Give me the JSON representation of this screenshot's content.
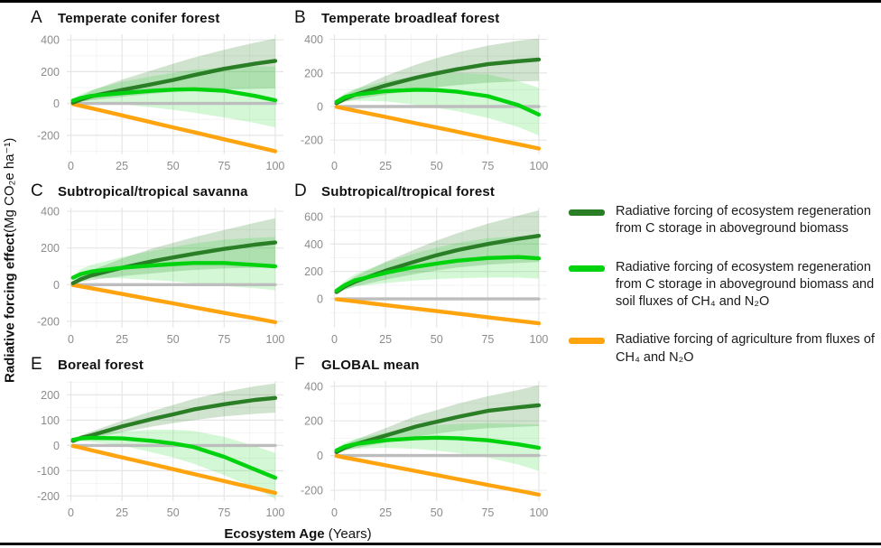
{
  "figure": {
    "y_axis_title_bold": "Radiative forcing effect",
    "y_axis_title_unit": " (Mg CO₂e ha⁻¹)",
    "x_axis_title_bold": "Ecosystem Age",
    "x_axis_title_unit": " (Years)"
  },
  "colors": {
    "dark_green": "#2a7e26",
    "bright_green": "#00d30d",
    "orange": "#ffa40e",
    "gray": "#bdbdbd",
    "dark_green_ribbon": "rgba(42,126,38,0.22)",
    "bright_green_ribbon": "rgba(0,211,13,0.17)",
    "grid_major": "#e6e6e6",
    "grid_minor": "#f3f3f3",
    "tick_label": "#8c8c8c"
  },
  "legend": {
    "items": [
      {
        "color": "#2a7e26",
        "label": "Radiative forcing of ecosystem regeneration from C storage in aboveground biomass"
      },
      {
        "color": "#00d30d",
        "label": "Radiative forcing of ecosystem regeneration from C storage in aboveground biomass and soil fluxes of CH₄ and N₂O"
      },
      {
        "color": "#ffa40e",
        "label": "Radiative forcing of agriculture from fluxes of CH₄ and N₂O"
      }
    ]
  },
  "chart_data": [
    {
      "type": "line",
      "letter": "A",
      "title": "Temperate conifer forest",
      "x": [
        1,
        5,
        10,
        25,
        40,
        50,
        60,
        75,
        90,
        100
      ],
      "xlim": [
        -2,
        104
      ],
      "ylim": [
        -320,
        435
      ],
      "xticks": [
        0,
        25,
        50,
        75,
        100
      ],
      "yticks": [
        -200,
        0,
        200,
        400
      ],
      "series": [
        {
          "name": "zero_reference",
          "color_key": "gray",
          "values": [
            0,
            0,
            0,
            0,
            0,
            0,
            0,
            0,
            0,
            0
          ]
        },
        {
          "name": "agriculture_ch4_n2o",
          "color_key": "orange",
          "values": [
            -3,
            -15,
            -30,
            -75,
            -120,
            -150,
            -180,
            -225,
            -270,
            -300
          ]
        },
        {
          "name": "regeneration_agb",
          "color_key": "dark_green",
          "ribbon_key": "dark_green_ribbon",
          "values": [
            5,
            25,
            45,
            85,
            122,
            148,
            178,
            218,
            250,
            268
          ],
          "ribbon_lo": [
            0,
            10,
            20,
            42,
            62,
            72,
            82,
            88,
            92,
            95
          ],
          "ribbon_hi": [
            12,
            45,
            80,
            150,
            210,
            250,
            288,
            338,
            382,
            408
          ]
        },
        {
          "name": "regeneration_agb_soil",
          "color_key": "bright_green",
          "ribbon_key": "bright_green_ribbon",
          "values": [
            18,
            35,
            48,
            65,
            80,
            87,
            90,
            80,
            48,
            20
          ],
          "ribbon_lo": [
            8,
            14,
            10,
            -5,
            -25,
            -40,
            -58,
            -88,
            -122,
            -150
          ],
          "ribbon_hi": [
            30,
            60,
            85,
            135,
            172,
            192,
            212,
            228,
            234,
            232
          ]
        }
      ]
    },
    {
      "type": "line",
      "letter": "B",
      "title": "Temperate broadleaf forest",
      "x": [
        1,
        5,
        10,
        25,
        40,
        50,
        60,
        75,
        90,
        100
      ],
      "xlim": [
        -2,
        104
      ],
      "ylim": [
        -285,
        430
      ],
      "xticks": [
        0,
        25,
        50,
        75,
        100
      ],
      "yticks": [
        -200,
        0,
        200,
        400
      ],
      "series": [
        {
          "name": "zero_reference",
          "color_key": "gray",
          "values": [
            0,
            0,
            0,
            0,
            0,
            0,
            0,
            0,
            0,
            0
          ]
        },
        {
          "name": "agriculture_ch4_n2o",
          "color_key": "orange",
          "values": [
            -2,
            -12,
            -25,
            -62,
            -100,
            -125,
            -150,
            -188,
            -225,
            -250
          ]
        },
        {
          "name": "regeneration_agb",
          "color_key": "dark_green",
          "ribbon_key": "dark_green_ribbon",
          "values": [
            20,
            45,
            70,
            125,
            172,
            198,
            222,
            252,
            270,
            280
          ],
          "ribbon_lo": [
            12,
            28,
            42,
            72,
            100,
            115,
            128,
            142,
            150,
            152
          ],
          "ribbon_hi": [
            28,
            68,
            100,
            182,
            250,
            288,
            322,
            362,
            392,
            405
          ]
        },
        {
          "name": "regeneration_agb_soil",
          "color_key": "bright_green",
          "ribbon_key": "bright_green_ribbon",
          "values": [
            28,
            55,
            70,
            92,
            100,
            98,
            88,
            62,
            8,
            -48
          ],
          "ribbon_lo": [
            16,
            30,
            35,
            30,
            10,
            -8,
            -28,
            -68,
            -122,
            -172
          ],
          "ribbon_hi": [
            40,
            80,
            105,
            150,
            182,
            192,
            198,
            192,
            152,
            112
          ]
        }
      ]
    },
    {
      "type": "line",
      "letter": "C",
      "title": "Subtropical/tropical savanna",
      "x": [
        1,
        5,
        10,
        25,
        40,
        50,
        60,
        75,
        90,
        100
      ],
      "xlim": [
        -2,
        104
      ],
      "ylim": [
        -235,
        420
      ],
      "xticks": [
        0,
        25,
        50,
        75,
        100
      ],
      "yticks": [
        -200,
        0,
        200,
        400
      ],
      "series": [
        {
          "name": "zero_reference",
          "color_key": "gray",
          "values": [
            0,
            0,
            0,
            0,
            0,
            0,
            0,
            0,
            0,
            0
          ]
        },
        {
          "name": "agriculture_ch4_n2o",
          "color_key": "orange",
          "values": [
            -2,
            -10,
            -20,
            -51,
            -82,
            -102,
            -123,
            -154,
            -184,
            -205
          ]
        },
        {
          "name": "regeneration_agb",
          "color_key": "dark_green",
          "ribbon_key": "dark_green_ribbon",
          "values": [
            8,
            30,
            50,
            92,
            128,
            148,
            168,
            195,
            218,
            230
          ],
          "ribbon_lo": [
            2,
            14,
            24,
            46,
            62,
            72,
            80,
            88,
            92,
            95
          ],
          "ribbon_hi": [
            14,
            48,
            78,
            142,
            198,
            228,
            258,
            298,
            338,
            362
          ]
        },
        {
          "name": "regeneration_agb_soil",
          "color_key": "bright_green",
          "ribbon_key": "bright_green_ribbon",
          "values": [
            38,
            58,
            72,
            92,
            105,
            112,
            118,
            118,
            108,
            100
          ],
          "ribbon_lo": [
            24,
            34,
            38,
            35,
            25,
            18,
            8,
            -8,
            -20,
            -30
          ],
          "ribbon_hi": [
            52,
            85,
            108,
            150,
            185,
            205,
            225,
            245,
            255,
            260
          ]
        }
      ]
    },
    {
      "type": "line",
      "letter": "D",
      "title": "Subtropical/tropical forest",
      "x": [
        1,
        5,
        10,
        25,
        40,
        50,
        60,
        75,
        90,
        100
      ],
      "xlim": [
        -2,
        104
      ],
      "ylim": [
        -210,
        665
      ],
      "xticks": [
        0,
        25,
        50,
        75,
        100
      ],
      "yticks": [
        0,
        200,
        400,
        600
      ],
      "series": [
        {
          "name": "zero_reference",
          "color_key": "gray",
          "values": [
            0,
            0,
            0,
            0,
            0,
            0,
            0,
            0,
            0,
            0
          ]
        },
        {
          "name": "agriculture_ch4_n2o",
          "color_key": "orange",
          "values": [
            -2,
            -9,
            -18,
            -45,
            -71,
            -89,
            -107,
            -134,
            -160,
            -178
          ]
        },
        {
          "name": "regeneration_agb",
          "color_key": "dark_green",
          "ribbon_key": "dark_green_ribbon",
          "values": [
            50,
            90,
            125,
            205,
            275,
            318,
            355,
            400,
            438,
            460
          ],
          "ribbon_lo": [
            40,
            65,
            90,
            140,
            182,
            208,
            228,
            250,
            262,
            268
          ],
          "ribbon_hi": [
            62,
            115,
            162,
            270,
            365,
            425,
            478,
            548,
            608,
            645
          ]
        },
        {
          "name": "regeneration_agb_soil",
          "color_key": "bright_green",
          "ribbon_key": "bright_green_ribbon",
          "values": [
            60,
            100,
            135,
            190,
            235,
            258,
            278,
            298,
            305,
            295
          ],
          "ribbon_lo": [
            45,
            70,
            90,
            115,
            135,
            143,
            150,
            155,
            155,
            148
          ],
          "ribbon_hi": [
            75,
            130,
            180,
            265,
            335,
            372,
            408,
            442,
            458,
            452
          ]
        }
      ]
    },
    {
      "type": "line",
      "letter": "E",
      "title": "Boreal forest",
      "x": [
        1,
        5,
        10,
        25,
        40,
        50,
        60,
        75,
        90,
        100
      ],
      "xlim": [
        -2,
        104
      ],
      "ylim": [
        -220,
        255
      ],
      "xticks": [
        0,
        25,
        50,
        75,
        100
      ],
      "yticks": [
        -200,
        -100,
        0,
        100,
        200
      ],
      "series": [
        {
          "name": "zero_reference",
          "color_key": "gray",
          "values": [
            0,
            0,
            0,
            0,
            0,
            0,
            0,
            0,
            0,
            0
          ]
        },
        {
          "name": "agriculture_ch4_n2o",
          "color_key": "orange",
          "values": [
            -2,
            -9,
            -19,
            -47,
            -75,
            -94,
            -113,
            -141,
            -169,
            -188
          ]
        },
        {
          "name": "regeneration_agb",
          "color_key": "dark_green",
          "ribbon_key": "dark_green_ribbon",
          "values": [
            18,
            30,
            40,
            75,
            105,
            123,
            142,
            163,
            180,
            188
          ],
          "ribbon_lo": [
            12,
            20,
            28,
            52,
            75,
            88,
            100,
            115,
            125,
            130
          ],
          "ribbon_hi": [
            24,
            40,
            55,
            98,
            136,
            160,
            184,
            212,
            234,
            245
          ]
        },
        {
          "name": "regeneration_agb_soil",
          "color_key": "bright_green",
          "ribbon_key": "bright_green_ribbon",
          "values": [
            22,
            28,
            30,
            28,
            18,
            8,
            -6,
            -45,
            -95,
            -128
          ],
          "ribbon_lo": [
            14,
            17,
            14,
            0,
            -28,
            -48,
            -72,
            -118,
            -168,
            -212
          ],
          "ribbon_hi": [
            30,
            40,
            46,
            55,
            62,
            62,
            58,
            34,
            -2,
            -30
          ]
        }
      ]
    },
    {
      "type": "line",
      "letter": "F",
      "title": "GLOBAL mean",
      "x": [
        1,
        5,
        10,
        25,
        40,
        50,
        60,
        75,
        90,
        100
      ],
      "xlim": [
        -2,
        104
      ],
      "ylim": [
        -262,
        430
      ],
      "xticks": [
        0,
        25,
        50,
        75,
        100
      ],
      "yticks": [
        -200,
        0,
        200,
        400
      ],
      "series": [
        {
          "name": "zero_reference",
          "color_key": "gray",
          "values": [
            0,
            0,
            0,
            0,
            0,
            0,
            0,
            0,
            0,
            0
          ]
        },
        {
          "name": "agriculture_ch4_n2o",
          "color_key": "orange",
          "values": [
            -2,
            -11,
            -22,
            -56,
            -90,
            -112,
            -135,
            -169,
            -202,
            -225
          ]
        },
        {
          "name": "regeneration_agb",
          "color_key": "dark_green",
          "ribbon_key": "dark_green_ribbon",
          "values": [
            20,
            45,
            65,
            115,
            168,
            195,
            222,
            258,
            278,
            290
          ],
          "ribbon_lo": [
            12,
            28,
            42,
            75,
            108,
            126,
            142,
            158,
            166,
            170
          ],
          "ribbon_hi": [
            28,
            62,
            90,
            158,
            228,
            262,
            298,
            342,
            378,
            405
          ]
        },
        {
          "name": "regeneration_agb_soil",
          "color_key": "bright_green",
          "ribbon_key": "bright_green_ribbon",
          "values": [
            30,
            52,
            66,
            88,
            100,
            103,
            100,
            88,
            65,
            45
          ],
          "ribbon_lo": [
            18,
            32,
            40,
            45,
            38,
            28,
            16,
            -12,
            -52,
            -88
          ],
          "ribbon_hi": [
            42,
            75,
            95,
            132,
            162,
            175,
            183,
            187,
            182,
            178
          ]
        }
      ]
    }
  ]
}
